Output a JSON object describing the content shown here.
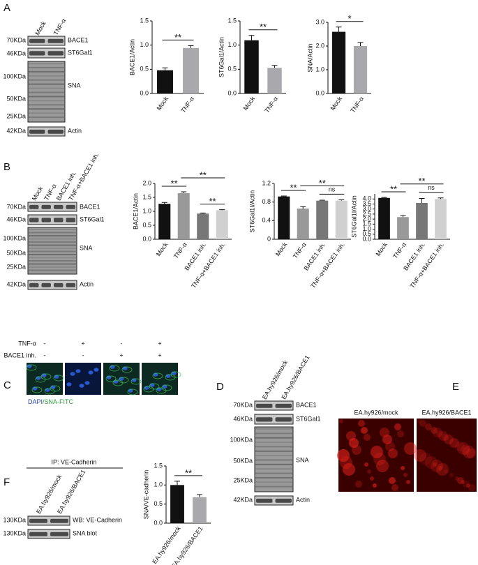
{
  "panel_labels": [
    "A",
    "B",
    "C",
    "D",
    "E",
    "F"
  ],
  "blots": {
    "A": {
      "lanes": [
        "Mock",
        "TNF-α"
      ],
      "markers": [
        "70KDa",
        "46KDa",
        "100KDa",
        "50KDa",
        "25KDa",
        "42KDa"
      ],
      "bands": [
        "BACE1",
        "ST6Gal1",
        "SNA",
        "Actin"
      ]
    },
    "B": {
      "lanes": [
        "Mock",
        "TNF-α",
        "BACE1 inh.",
        "TNF-α+BACE1 inh."
      ],
      "markers": [
        "70KDa",
        "46KDa",
        "100KDa",
        "50KDa",
        "25KDa",
        "42KDa"
      ],
      "bands": [
        "BACE1",
        "ST6Gal1",
        "SNA",
        "Actin"
      ]
    },
    "D": {
      "lanes": [
        "EA.hy926/mock",
        "EA.hy926/BACE1"
      ],
      "markers": [
        "70KDa",
        "46KDa",
        "100KDa",
        "50KDa",
        "25KDa",
        "42KDa"
      ],
      "bands": [
        "BACE1",
        "ST6Gal1",
        "SNA",
        "Actin"
      ]
    },
    "F": {
      "header": "IP: VE-Cadherin",
      "lanes": [
        "EA.hy926/mock",
        "EA.hy926/BACE1"
      ],
      "markers": [
        "130KDa",
        "130KDa"
      ],
      "bands": [
        "WB: VE-Cadherin",
        "SNA blot"
      ]
    }
  },
  "treatments": {
    "rows": [
      {
        "name": "TNF-α",
        "signs": [
          "-",
          "+",
          "-",
          "+"
        ]
      },
      {
        "name": "BACE1 inh.",
        "signs": [
          "-",
          "-",
          "+",
          "+"
        ]
      }
    ],
    "caption": [
      "DAPI",
      "/SNA-FITC"
    ]
  },
  "images": [
    "EA.hy926/mock",
    "EA.hy926/BACE1"
  ],
  "chart_data": [
    {
      "type": "bar",
      "y_label": "BACE1/Actin",
      "categories": [
        "Mock",
        "TNF-α"
      ],
      "values": [
        0.48,
        0.94
      ],
      "errors": [
        0.05,
        0.05
      ],
      "colors": [
        "#111111",
        "#a9a9ad"
      ],
      "ylim": [
        0,
        1.5
      ],
      "yticks": [
        {
          "value": 0,
          "label": "0.0"
        },
        0.5,
        {
          "value": 1,
          "label": "1.0"
        },
        1.5
      ],
      "annotations": [
        {
          "from": 0,
          "to": 1,
          "text": "**"
        }
      ]
    },
    {
      "type": "bar",
      "y_label": "ST6Gal1/Actin",
      "categories": [
        "Mock",
        "TNF-α"
      ],
      "values": [
        1.1,
        0.53
      ],
      "errors": [
        0.1,
        0.05
      ],
      "colors": [
        "#111111",
        "#a9a9ad"
      ],
      "ylim": [
        0,
        1.5
      ],
      "yticks": [
        {
          "value": 0,
          "label": "0.0"
        },
        0.5,
        {
          "value": 1,
          "label": "1.0"
        },
        1.5
      ],
      "annotations": [
        {
          "from": 0,
          "to": 1,
          "text": "**"
        }
      ]
    },
    {
      "type": "bar",
      "y_label": "SNA/Actin",
      "categories": [
        "Mock",
        "TNF-α"
      ],
      "values": [
        2.6,
        2.0
      ],
      "errors": [
        0.2,
        0.15
      ],
      "colors": [
        "#111111",
        "#a9a9ad"
      ],
      "ylim": [
        0,
        3
      ],
      "yticks": [
        {
          "value": 0,
          "label": "0.0"
        },
        {
          "value": 1,
          "label": "1.0"
        },
        {
          "value": 2,
          "label": "2.0"
        },
        {
          "value": 3,
          "label": "3.0"
        }
      ],
      "annotations": [
        {
          "from": 0,
          "to": 1,
          "text": "*"
        }
      ]
    },
    {
      "type": "bar",
      "y_label": "BACE1/Actin",
      "categories": [
        "Mock",
        "TNF-α",
        "BACE1 inh.",
        "TNF-α+BACE1 inh."
      ],
      "values": [
        1.27,
        1.65,
        0.92,
        1.04
      ],
      "errors": [
        0.05,
        0.05,
        0.02,
        0.02
      ],
      "colors": [
        "#111111",
        "#999999",
        "#777777",
        "#d0d0d0"
      ],
      "ylim": [
        0,
        2
      ],
      "yticks": [
        {
          "value": 0,
          "label": "0.0"
        },
        0.5,
        {
          "value": 1,
          "label": "1.0"
        },
        1.5,
        {
          "value": 2,
          "label": "2.0"
        }
      ],
      "annotations": [
        {
          "from": 0,
          "to": 1,
          "text": "**"
        },
        {
          "from": 1,
          "to": 3,
          "text": "**"
        },
        {
          "from": 2,
          "to": 3,
          "text": "**"
        }
      ]
    },
    {
      "type": "bar",
      "y_label": "ST6Gal1I/Actin",
      "categories": [
        "Mock",
        "TNF-α",
        "BACE1 inh.",
        "TNF-α+BACE1 inh."
      ],
      "values": [
        0.92,
        0.66,
        0.83,
        0.83
      ],
      "errors": [
        0.01,
        0.04,
        0.01,
        0.02
      ],
      "colors": [
        "#111111",
        "#999999",
        "#777777",
        "#d0d0d0"
      ],
      "ylim": [
        0,
        1.2
      ],
      "yticks": [
        0,
        0.4,
        0.8,
        1.2
      ],
      "annotations": [
        {
          "from": 0,
          "to": 1,
          "text": "**"
        },
        {
          "from": 1,
          "to": 3,
          "text": "**"
        },
        {
          "from": 2,
          "to": 3,
          "text": "ns"
        }
      ]
    },
    {
      "type": "bar",
      "y_label": "ST6Gal1I/Actin",
      "categories": [
        "Mock",
        "TNF-α",
        "BACE1 inh.",
        "TNF-α+BACE1 inh."
      ],
      "values": [
        4.1,
        2.2,
        3.6,
        4.0
      ],
      "errors": [
        0.05,
        0.15,
        0.45,
        0.1
      ],
      "colors": [
        "#111111",
        "#999999",
        "#777777",
        "#d0d0d0"
      ],
      "ylim": [
        0,
        4.5
      ],
      "yticks": [
        {
          "value": 0,
          "label": "0.0"
        },
        0.5,
        {
          "value": 1,
          "label": "1.0"
        },
        1.5,
        {
          "value": 2,
          "label": "2.0"
        },
        2.5,
        {
          "value": 3,
          "label": "3.0"
        },
        3.5,
        {
          "value": 4,
          "label": "4.0"
        }
      ],
      "annotations": [
        {
          "from": 0,
          "to": 1,
          "text": "**"
        },
        {
          "from": 1,
          "to": 3,
          "text": "**"
        },
        {
          "from": 2,
          "to": 3,
          "text": "ns"
        }
      ]
    },
    {
      "type": "bar",
      "y_label": "SNA/VE-cadherin",
      "categories": [
        "EA.hy926/mock",
        "EA.hy926/BACE1"
      ],
      "values": [
        1.0,
        0.68
      ],
      "errors": [
        0.1,
        0.07
      ],
      "colors": [
        "#111111",
        "#a9a9ad"
      ],
      "ylim": [
        0,
        1.5
      ],
      "yticks": [
        {
          "value": 0,
          "label": "0.0"
        },
        0.5,
        {
          "value": 1,
          "label": "1.0"
        },
        1.5
      ],
      "annotations": [
        {
          "from": 0,
          "to": 1,
          "text": "**"
        }
      ]
    }
  ]
}
